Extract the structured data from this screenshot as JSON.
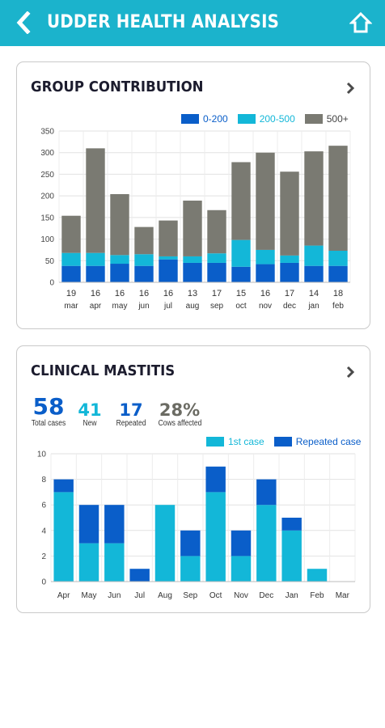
{
  "header": {
    "title": "UDDER HEALTH ANALYSIS",
    "back_icon": "chevron-left-icon",
    "home_icon": "home-icon"
  },
  "colors": {
    "header": "#1bb3cc",
    "dark_blue": "#0a5ec9",
    "cyan": "#13b7d8",
    "gray": "#7a7a72"
  },
  "group_contribution": {
    "title": "GROUP CONTRIBUTION",
    "chart_data": {
      "type": "bar",
      "stacked": true,
      "categories": [
        [
          "19",
          "mar"
        ],
        [
          "16",
          "apr"
        ],
        [
          "16",
          "may"
        ],
        [
          "16",
          "jun"
        ],
        [
          "16",
          "jul"
        ],
        [
          "13",
          "aug"
        ],
        [
          "17",
          "sep"
        ],
        [
          "15",
          "oct"
        ],
        [
          "16",
          "nov"
        ],
        [
          "17",
          "dec"
        ],
        [
          "14",
          "jan"
        ],
        [
          "18",
          "feb"
        ]
      ],
      "series": [
        {
          "name": "0-200",
          "color": "#0a5ec9",
          "values": [
            38,
            38,
            43,
            38,
            53,
            45,
            45,
            36,
            42,
            45,
            38,
            38
          ]
        },
        {
          "name": "200-500",
          "color": "#13b7d8",
          "values": [
            30,
            30,
            20,
            27,
            7,
            15,
            22,
            62,
            33,
            17,
            47,
            35
          ]
        },
        {
          "name": "500+",
          "color": "#7a7a72",
          "values": [
            86,
            242,
            141,
            63,
            83,
            129,
            100,
            180,
            225,
            194,
            218,
            243
          ]
        }
      ],
      "ylim": [
        0,
        350
      ],
      "yticks": [
        "0",
        "50",
        "100",
        "150",
        "200",
        "250",
        "300",
        "350"
      ],
      "grid": true,
      "legend": "top-right"
    }
  },
  "clinical_mastitis": {
    "title": "CLINICAL MASTITIS",
    "stats": [
      {
        "value": "58",
        "label": "Total cases"
      },
      {
        "value": "41",
        "label": "New"
      },
      {
        "value": "17",
        "label": "Repeated"
      },
      {
        "value": "28%",
        "label": "Cows affected"
      }
    ],
    "chart_data": {
      "type": "bar",
      "stacked": true,
      "categories": [
        "Apr",
        "May",
        "Jun",
        "Jul",
        "Aug",
        "Sep",
        "Oct",
        "Nov",
        "Dec",
        "Jan",
        "Feb",
        "Mar"
      ],
      "series": [
        {
          "name": "1st case",
          "color": "#13b7d8",
          "values": [
            7,
            3,
            3,
            0,
            6,
            2,
            7,
            2,
            6,
            4,
            1,
            0
          ]
        },
        {
          "name": "Repeated case",
          "color": "#0a5ec9",
          "values": [
            1,
            3,
            3,
            1,
            0,
            2,
            2,
            2,
            2,
            1,
            0,
            0
          ]
        }
      ],
      "ylim": [
        0,
        10
      ],
      "yticks": [
        "0",
        "2",
        "4",
        "6",
        "8",
        "10"
      ],
      "grid": true,
      "legend": "top-right"
    }
  }
}
